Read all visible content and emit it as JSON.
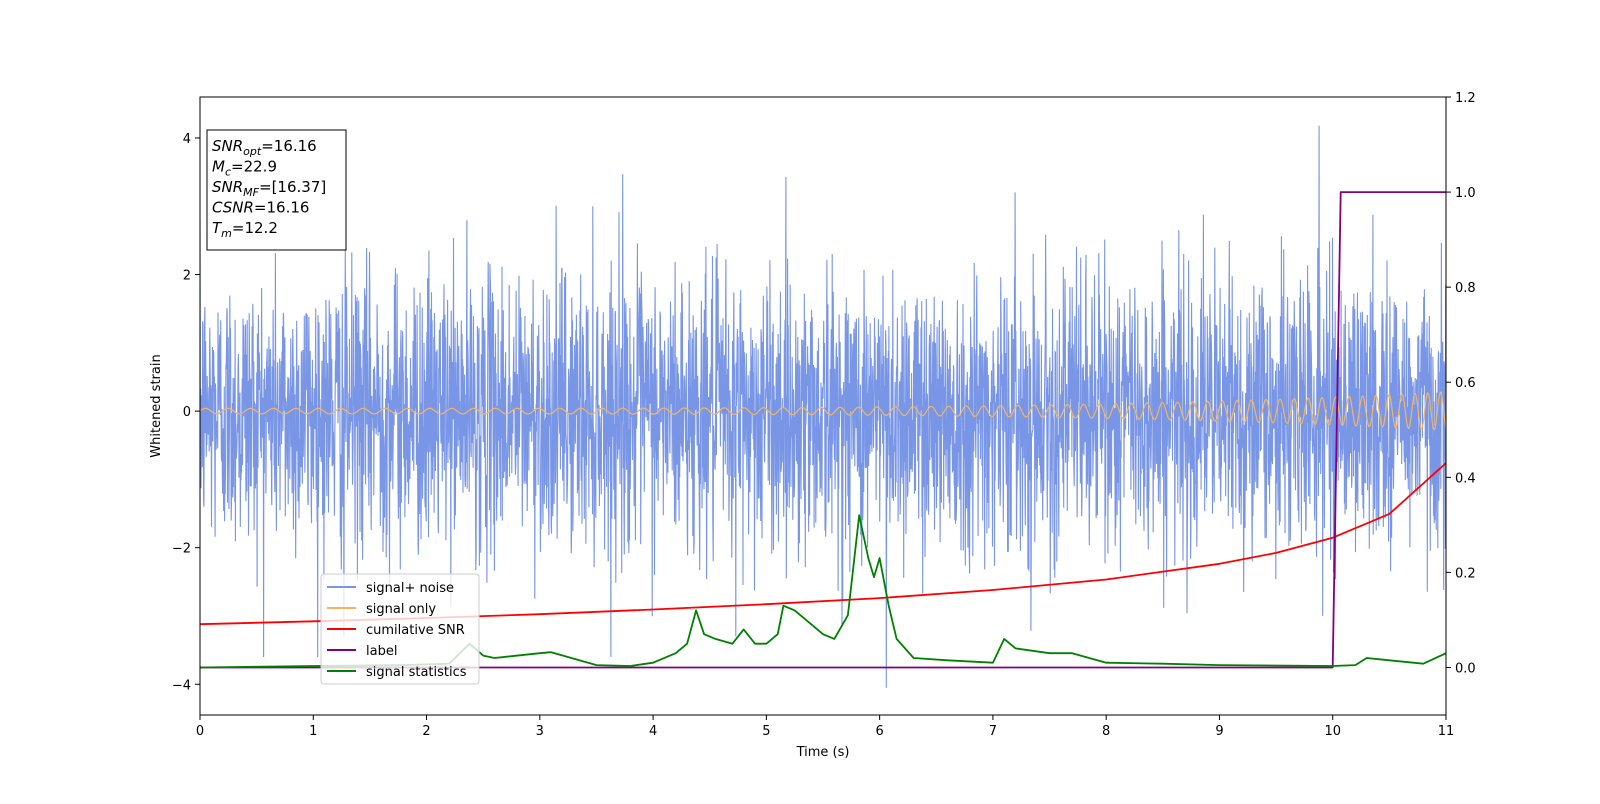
{
  "chart_data": {
    "type": "line",
    "xlabel": "Time (s)",
    "ylabel": "Whitened strain",
    "xlim": [
      0,
      11
    ],
    "ylim": [
      -4.45,
      4.6
    ],
    "y2lim": [
      -0.1,
      1.2
    ],
    "x_ticks": [
      0,
      1,
      2,
      3,
      4,
      5,
      6,
      7,
      8,
      9,
      10,
      11
    ],
    "y_ticks": [
      -4,
      -2,
      0,
      2,
      4
    ],
    "y2_ticks": [
      "0.0",
      "0.2",
      "0.4",
      "0.6",
      "0.8",
      "1.0",
      "1.2"
    ],
    "grid": false,
    "legend_position": "lower-left",
    "info_box": {
      "lines": [
        {
          "sym": "SNR",
          "sub": "opt",
          "val": "=16.16"
        },
        {
          "sym": "M",
          "sub": "c",
          "val": "=22.9"
        },
        {
          "sym": "SNR",
          "sub": "MF",
          "val": "=[16.37]"
        },
        {
          "sym": "CSNR",
          "sub": "",
          "val": "=16.16"
        },
        {
          "sym": "T",
          "sub": "m",
          "val": "=12.2"
        }
      ]
    },
    "series": [
      {
        "name": "signal+ noise",
        "color": "#7895e6",
        "axis": "left",
        "noise_sigma": 1.0,
        "highlighted_peaks": [
          {
            "x": 9.88,
            "y": 4.18
          },
          {
            "x": 6.06,
            "y": -4.05
          },
          {
            "x": 3.73,
            "y": 3.47
          },
          {
            "x": 1.27,
            "y": -3.3
          },
          {
            "x": 4.73,
            "y": -3.3
          }
        ]
      },
      {
        "name": "signal only",
        "color": "#f5b560",
        "axis": "left",
        "amplitude_start": 0.04,
        "amplitude_end": 0.28,
        "frequency_start_hz": 5.0,
        "frequency_end_hz": 9.0
      },
      {
        "name": "cumilative SNR",
        "color": "#ff0000",
        "axis": "right",
        "x": [
          0,
          1,
          2,
          3,
          4,
          5,
          6,
          7,
          8,
          9,
          9.5,
          10,
          10.5,
          11
        ],
        "y": [
          0.091,
          0.097,
          0.104,
          0.112,
          0.122,
          0.133,
          0.146,
          0.163,
          0.185,
          0.218,
          0.241,
          0.273,
          0.323,
          0.43
        ]
      },
      {
        "name": "label",
        "color": "#800080",
        "axis": "right",
        "x": [
          0,
          10.0,
          10.07,
          11
        ],
        "y": [
          0,
          0,
          1,
          1
        ]
      },
      {
        "name": "signal statistics",
        "color": "#008000",
        "axis": "right",
        "x": [
          0,
          1,
          1.8,
          2.2,
          2.38,
          2.5,
          2.6,
          3,
          3.1,
          3.5,
          3.8,
          4.0,
          4.2,
          4.3,
          4.38,
          4.45,
          4.55,
          4.7,
          4.8,
          4.9,
          5.0,
          5.1,
          5.15,
          5.25,
          5.4,
          5.5,
          5.6,
          5.72,
          5.82,
          5.9,
          5.95,
          6.0,
          6.08,
          6.15,
          6.3,
          6.6,
          7.0,
          7.1,
          7.2,
          7.5,
          7.7,
          8.0,
          8.5,
          9.0,
          10.0,
          10.2,
          10.3,
          10.5,
          10.8,
          11
        ],
        "y": [
          0,
          0.003,
          0.005,
          0.008,
          0.05,
          0.025,
          0.02,
          0.03,
          0.032,
          0.005,
          0.003,
          0.01,
          0.03,
          0.05,
          0.12,
          0.07,
          0.06,
          0.05,
          0.08,
          0.05,
          0.05,
          0.07,
          0.13,
          0.12,
          0.09,
          0.07,
          0.06,
          0.11,
          0.32,
          0.23,
          0.19,
          0.23,
          0.13,
          0.06,
          0.02,
          0.015,
          0.01,
          0.06,
          0.04,
          0.03,
          0.03,
          0.01,
          0.008,
          0.005,
          0.003,
          0.005,
          0.02,
          0.015,
          0.008,
          0.03
        ]
      }
    ]
  }
}
